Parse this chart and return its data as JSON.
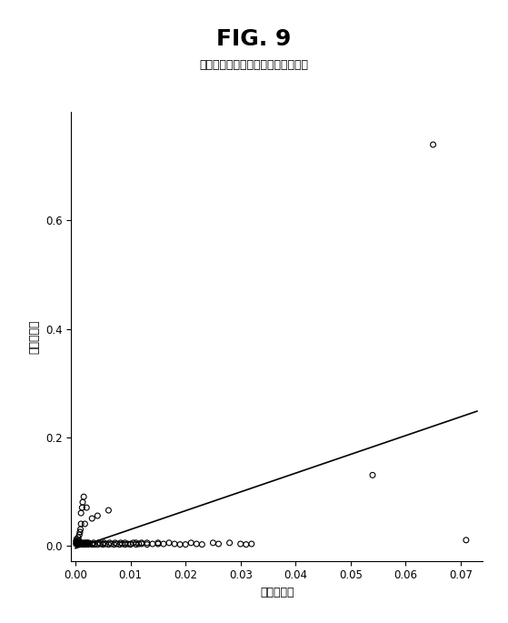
{
  "title": "FIG. 9",
  "subtitle": "注視の垂直および水平共同性の関係",
  "xlabel": "水平共同性",
  "ylabel": "垂直共同性",
  "xlim": [
    -0.0008,
    0.074
  ],
  "ylim": [
    -0.028,
    0.8
  ],
  "xticks": [
    0.0,
    0.01,
    0.02,
    0.03,
    0.04,
    0.05,
    0.06,
    0.07
  ],
  "yticks": [
    0.0,
    0.2,
    0.4,
    0.6
  ],
  "regression_line": {
    "x0": 0.0,
    "y0": -0.005,
    "x1": 0.073,
    "y1": 0.248
  },
  "scatter_x": [
    0.0001,
    0.0001,
    0.0002,
    0.0002,
    0.0003,
    0.0003,
    0.0004,
    0.0004,
    0.0005,
    0.0005,
    0.0006,
    0.0006,
    0.0007,
    0.0007,
    0.0008,
    0.0008,
    0.0009,
    0.0009,
    0.001,
    0.001,
    0.001,
    0.0011,
    0.0012,
    0.0012,
    0.0013,
    0.0013,
    0.0014,
    0.0015,
    0.0015,
    0.0016,
    0.0017,
    0.0018,
    0.0019,
    0.002,
    0.002,
    0.0021,
    0.0022,
    0.0023,
    0.0024,
    0.0025,
    0.003,
    0.003,
    0.0031,
    0.0033,
    0.0035,
    0.004,
    0.004,
    0.0042,
    0.0045,
    0.005,
    0.005,
    0.0052,
    0.0055,
    0.006,
    0.006,
    0.0062,
    0.0065,
    0.007,
    0.0072,
    0.0075,
    0.008,
    0.0082,
    0.0085,
    0.009,
    0.009,
    0.0095,
    0.01,
    0.01,
    0.0105,
    0.011,
    0.011,
    0.0115,
    0.012,
    0.012,
    0.013,
    0.013,
    0.014,
    0.015,
    0.015,
    0.016,
    0.017,
    0.018,
    0.019,
    0.02,
    0.021,
    0.022,
    0.023,
    0.025,
    0.026,
    0.028,
    0.03,
    0.031,
    0.032,
    0.054,
    0.065,
    0.071
  ],
  "scatter_y": [
    0.003,
    0.008,
    0.005,
    0.012,
    0.002,
    0.007,
    0.003,
    0.01,
    0.005,
    0.015,
    0.004,
    0.009,
    0.002,
    0.02,
    0.003,
    0.025,
    0.005,
    0.03,
    0.002,
    0.04,
    0.06,
    0.003,
    0.005,
    0.07,
    0.002,
    0.08,
    0.003,
    0.002,
    0.09,
    0.005,
    0.04,
    0.002,
    0.005,
    0.003,
    0.07,
    0.005,
    0.003,
    0.002,
    0.005,
    0.003,
    0.002,
    0.05,
    0.003,
    0.005,
    0.002,
    0.002,
    0.055,
    0.005,
    0.003,
    0.003,
    0.002,
    0.005,
    0.003,
    0.002,
    0.065,
    0.005,
    0.003,
    0.002,
    0.005,
    0.003,
    0.002,
    0.005,
    0.003,
    0.002,
    0.005,
    0.003,
    0.003,
    0.002,
    0.005,
    0.002,
    0.005,
    0.003,
    0.003,
    0.005,
    0.002,
    0.005,
    0.003,
    0.003,
    0.005,
    0.003,
    0.005,
    0.003,
    0.002,
    0.002,
    0.005,
    0.003,
    0.002,
    0.005,
    0.003,
    0.005,
    0.003,
    0.002,
    0.003,
    0.13,
    0.74,
    0.01
  ],
  "marker_size": 18,
  "marker_color": "none",
  "marker_edge_color": "#000000",
  "marker_edge_width": 0.8,
  "line_color": "#000000",
  "line_width": 1.2,
  "background_color": "#ffffff",
  "title_fontsize": 18,
  "subtitle_fontsize": 9,
  "axis_label_fontsize": 9,
  "tick_fontsize": 8.5
}
